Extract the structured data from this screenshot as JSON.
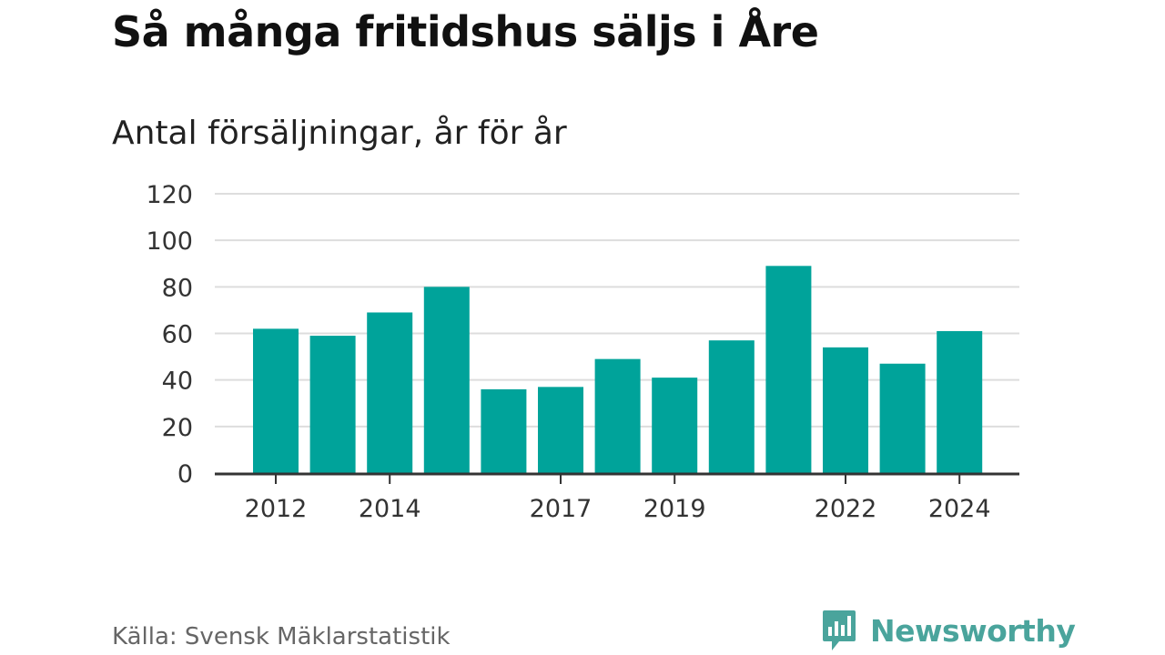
{
  "header": {
    "title": "Så många fritidshus säljs i Åre",
    "subtitle": "Antal försäljningar, år för år"
  },
  "footer": {
    "source": "Källa: Svensk Mäklarstatistik",
    "brand": "Newsworthy",
    "brand_icon": "bar-chart-speech-bubble-icon"
  },
  "colors": {
    "bar": "#00a39a",
    "grid": "#dddddd",
    "axis": "#333333",
    "brand": "#4aa49c"
  },
  "chart_data": {
    "type": "bar",
    "categories": [
      "2012",
      "2013",
      "2014",
      "2015",
      "2016",
      "2017",
      "2018",
      "2019",
      "2020",
      "2021",
      "2022",
      "2023",
      "2024"
    ],
    "values": [
      62,
      59,
      69,
      80,
      36,
      37,
      49,
      41,
      57,
      89,
      54,
      47,
      61
    ],
    "x_tick_labels": [
      "2012",
      "2014",
      "2017",
      "2019",
      "2022",
      "2024"
    ],
    "y_ticks": [
      0,
      20,
      40,
      60,
      80,
      100,
      120
    ],
    "ylim": [
      0,
      120
    ],
    "grid": true,
    "legend": "none"
  }
}
